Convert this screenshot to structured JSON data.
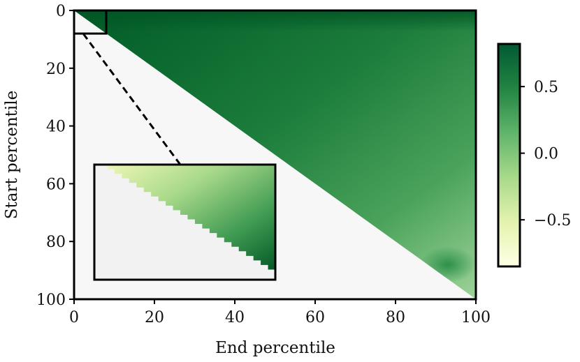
{
  "chart_data": {
    "type": "heatmap",
    "title": "",
    "xlabel": "End percentile",
    "ylabel": "Start percentile",
    "xlim": [
      0,
      100
    ],
    "ylim": [
      100,
      0
    ],
    "xticks": [
      "0",
      "20",
      "40",
      "60",
      "80",
      "100"
    ],
    "yticks": [
      "0",
      "20",
      "40",
      "60",
      "80",
      "100"
    ],
    "colorbar": {
      "range": [
        -0.85,
        0.82
      ],
      "ticks": [
        "0.5",
        "0.0",
        "−0.5"
      ],
      "tick_values": [
        0.5,
        0.0,
        -0.5
      ],
      "colormap": "Greens"
    },
    "region": "upper triangle (start < end); lower triangle masked",
    "values_summary": {
      "corner_start0_end100": 0.78,
      "top_band_start0": 0.8,
      "center_region": 0.6,
      "diagonal_near_end90": 0.1,
      "local_feature_near_start88_end93": 0.55
    },
    "inset": {
      "source_region": {
        "start": [
          0,
          8
        ],
        "end": [
          0,
          8
        ]
      },
      "values_summary": {
        "top_row": -0.5,
        "bottom_right": 0.8
      }
    }
  }
}
